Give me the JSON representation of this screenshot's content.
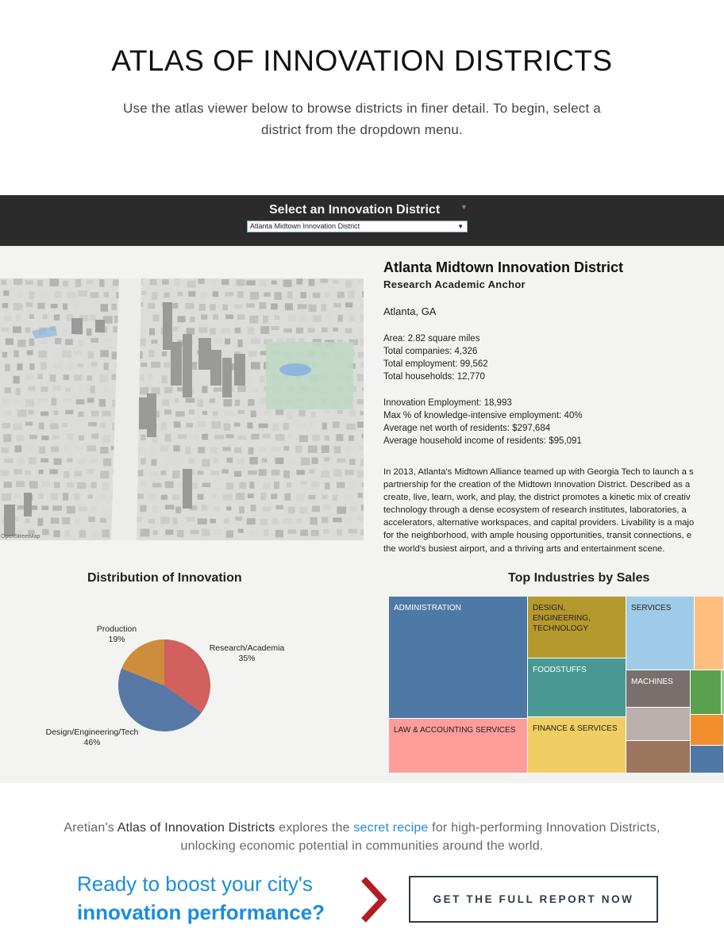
{
  "hero": {
    "title": "ATLAS OF INNOVATION DISTRICTS",
    "subtitle": "Use the atlas viewer below to browse districts in finer detail. To begin, select a district from the dropdown menu."
  },
  "selector": {
    "title": "Select an Innovation District",
    "caret": "▼",
    "selected": "Atlanta Midtown Innovation District"
  },
  "map": {
    "credit": "OpenStreetMap"
  },
  "district": {
    "name": "Atlanta Midtown Innovation District",
    "type": "Research Academic Anchor",
    "location": "Atlanta, GA",
    "area": "Area: 2.82 square miles",
    "companies": "Total companies: 4,326",
    "employment": "Total employment: 99,562",
    "households": "Total households: 12,770",
    "innovation_employment": "Innovation Employment: 18,993",
    "max_knowledge": "Max % of knowledge-intensive employment: 40%",
    "net_worth": "Average net worth of residents: $297,684",
    "household_income": "Average household income of residents: $95,091",
    "description_lines": [
      "In 2013, Atlanta's Midtown Alliance teamed up with Georgia Tech to launch a s",
      "partnership for the creation of the Midtown Innovation District. Described as a",
      "create, live, learn, work, and play, the district promotes a kinetic mix of creativ",
      "technology through a dense ecosystem of research institutes, laboratories, a",
      "accelerators, alternative workspaces, and capital providers. Livability is a majo",
      "for the neighborhood, with ample housing opportunities, transit connections, e",
      "the world's busiest airport, and a thriving arts and entertainment scene."
    ]
  },
  "pie": {
    "title": "Distribution of Innovation",
    "colors": {
      "research": "#d1605e",
      "design": "#5778a4",
      "production": "#d08c3d"
    },
    "slices": [
      {
        "label": "Research/Academia",
        "pct": "35%",
        "value": 35
      },
      {
        "label": "Design/Engineering/Tech",
        "pct": "46%",
        "value": 46
      },
      {
        "label": "Production",
        "pct": "19%",
        "value": 19
      }
    ]
  },
  "treemap": {
    "title": "Top Industries by Sales",
    "cells": [
      {
        "label": "ADMINISTRATION",
        "color": "#4e79a7"
      },
      {
        "label": "LAW & ACCOUNTING SERVICES",
        "color": "#ff9d9a"
      },
      {
        "label": "DESIGN,\nENGINEERING,\nTECHNOLOGY",
        "color": "#b6992d"
      },
      {
        "label": "FOODSTUFFS",
        "color": "#499894"
      },
      {
        "label": "FINANCE & SERVICES",
        "color": "#f1ce63"
      },
      {
        "label": "SERVICES",
        "color": "#a0cbe8"
      },
      {
        "label": "MACHINES",
        "color": "#79706e"
      }
    ]
  },
  "footer": {
    "t1": "Aretian's ",
    "t2": "Atlas of Innovation Districts",
    "t3": " explores the ",
    "t4": "secret recipe",
    "t5": " for high-performing Innovation Districts, unlocking economic potential in communities around the world.",
    "cta_line1": "Ready to boost your city's",
    "cta_line2": "innovation performance?",
    "button": "GET THE FULL REPORT NOW"
  }
}
